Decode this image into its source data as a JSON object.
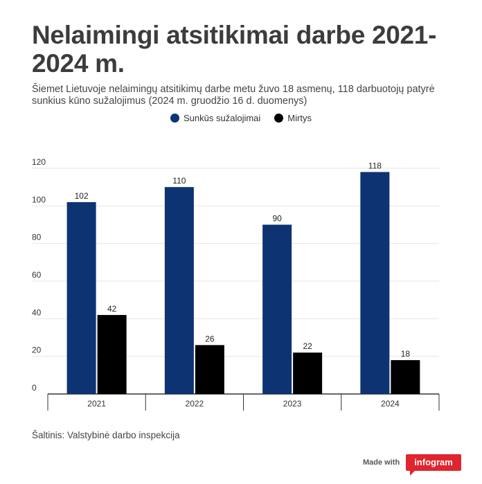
{
  "title": "Nelaimingi atsitikimai darbe 2021-2024 m.",
  "subtitle": "Šiemet Lietuvoje nelaimingų atsitikimų darbe metu žuvo 18 asmenų, 118 darbuotojų patyrė sunkius kūno sužalojimus (2024 m. gruodžio 16 d. duomenys)",
  "source": "Šaltinis: Valstybinė darbo inspekcija",
  "footer": {
    "made_with": "Made with",
    "brand": "infogram"
  },
  "colors": {
    "series1": "#0d3372",
    "series2": "#000000",
    "grid": "#e6e6e6",
    "axis": "#333333"
  },
  "chart_data": {
    "type": "bar",
    "title": "Nelaimingi atsitikimai darbe 2021-2024 m.",
    "categories": [
      "2021",
      "2022",
      "2023",
      "2024"
    ],
    "series": [
      {
        "name": "Sunkūs sužalojimai",
        "values": [
          102,
          110,
          90,
          118
        ]
      },
      {
        "name": "Mirtys",
        "values": [
          42,
          26,
          22,
          18
        ]
      }
    ],
    "ylim": [
      0,
      120
    ],
    "yticks": [
      0,
      20,
      40,
      60,
      80,
      100,
      120
    ],
    "xlabel": "",
    "ylabel": "",
    "grid": true,
    "legend": "top-center"
  }
}
